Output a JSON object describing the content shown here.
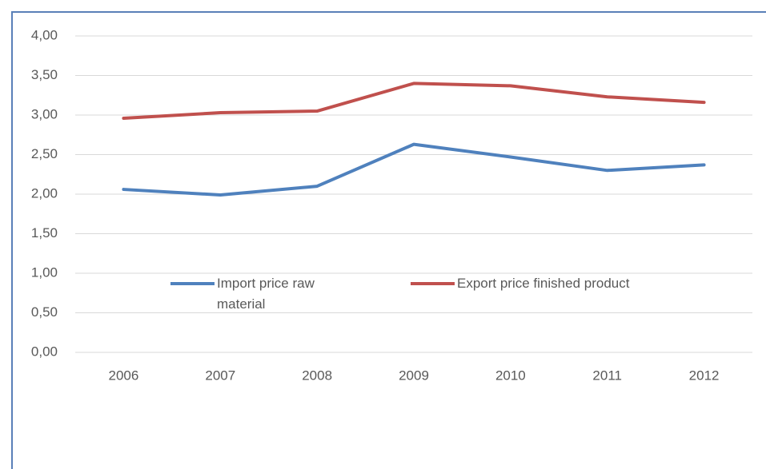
{
  "chart_data": {
    "type": "line",
    "categories": [
      "2006",
      "2007",
      "2008",
      "2009",
      "2010",
      "2011",
      "2012"
    ],
    "series": [
      {
        "name": "Import price raw material",
        "color": "#4f81bd",
        "values": [
          2.06,
          1.99,
          2.1,
          2.63,
          2.47,
          2.3,
          2.37
        ]
      },
      {
        "name": "Export price finished product",
        "color": "#c0504d",
        "values": [
          2.96,
          3.03,
          3.05,
          3.4,
          3.37,
          3.23,
          3.16
        ]
      }
    ],
    "ylim": [
      0,
      4
    ],
    "yticks": [
      {
        "value": 0,
        "label": "0,00"
      },
      {
        "value": 0.5,
        "label": "0,50"
      },
      {
        "value": 1,
        "label": "1,00"
      },
      {
        "value": 1.5,
        "label": "1,50"
      },
      {
        "value": 2,
        "label": "2,00"
      },
      {
        "value": 2.5,
        "label": "2,50"
      },
      {
        "value": 3,
        "label": "3,00"
      },
      {
        "value": 3.5,
        "label": "3,50"
      },
      {
        "value": 4,
        "label": "4,00"
      }
    ],
    "grid": true,
    "legend": "center"
  }
}
